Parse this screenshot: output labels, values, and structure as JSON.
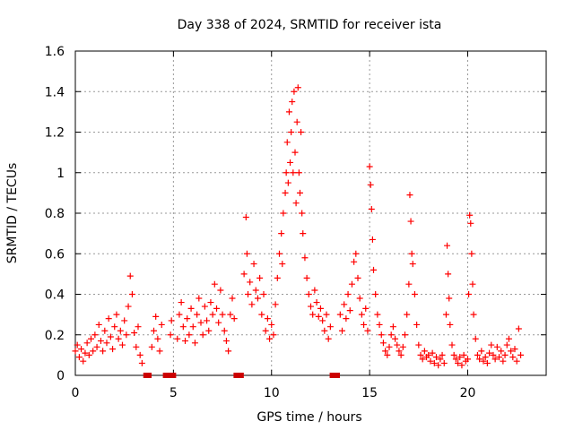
{
  "chart_data": {
    "type": "scatter",
    "title": "Day 338 of 2024, SRMTID for receiver ista",
    "xlabel": "GPS time / hours",
    "ylabel": "SRMTID / TECUs",
    "xlim": [
      0,
      24
    ],
    "ylim": [
      0,
      1.6
    ],
    "xticks": [
      0,
      5,
      10,
      15,
      20
    ],
    "yticks": [
      0,
      0.2,
      0.4,
      0.6,
      0.8,
      1,
      1.2,
      1.4,
      1.6
    ],
    "xtick_labels": [
      "0",
      "5",
      "10",
      "15",
      "20"
    ],
    "ytick_labels": [
      "0",
      "0.2",
      "0.4",
      "0.6",
      "0.8",
      "1",
      "1.2",
      "1.4",
      "1.6"
    ],
    "grid": true,
    "marker": "+",
    "series_color": "#ff0000",
    "gap_marker_color": "#cc0000",
    "data_gaps_x": [
      3.6,
      3.75,
      4.6,
      4.75,
      5.0,
      8.2,
      8.45,
      13.1,
      13.35
    ],
    "series": [
      {
        "name": "SRMTID",
        "points": [
          [
            0.0,
            0.12
          ],
          [
            0.1,
            0.15
          ],
          [
            0.2,
            0.09
          ],
          [
            0.3,
            0.13
          ],
          [
            0.4,
            0.07
          ],
          [
            0.5,
            0.11
          ],
          [
            0.6,
            0.16
          ],
          [
            0.7,
            0.1
          ],
          [
            0.8,
            0.18
          ],
          [
            0.9,
            0.12
          ],
          [
            1.0,
            0.2
          ],
          [
            1.1,
            0.14
          ],
          [
            1.2,
            0.25
          ],
          [
            1.3,
            0.17
          ],
          [
            1.4,
            0.12
          ],
          [
            1.5,
            0.22
          ],
          [
            1.6,
            0.16
          ],
          [
            1.7,
            0.28
          ],
          [
            1.8,
            0.19
          ],
          [
            1.9,
            0.13
          ],
          [
            2.0,
            0.24
          ],
          [
            2.1,
            0.3
          ],
          [
            2.2,
            0.18
          ],
          [
            2.3,
            0.22
          ],
          [
            2.4,
            0.15
          ],
          [
            2.5,
            0.27
          ],
          [
            2.6,
            0.2
          ],
          [
            2.7,
            0.34
          ],
          [
            2.8,
            0.49
          ],
          [
            2.9,
            0.4
          ],
          [
            3.0,
            0.21
          ],
          [
            3.1,
            0.14
          ],
          [
            3.2,
            0.24
          ],
          [
            3.3,
            0.1
          ],
          [
            3.4,
            0.06
          ],
          [
            3.9,
            0.14
          ],
          [
            4.0,
            0.22
          ],
          [
            4.1,
            0.29
          ],
          [
            4.2,
            0.18
          ],
          [
            4.3,
            0.12
          ],
          [
            4.4,
            0.25
          ],
          [
            4.85,
            0.2
          ],
          [
            4.9,
            0.27
          ],
          [
            5.2,
            0.18
          ],
          [
            5.3,
            0.3
          ],
          [
            5.4,
            0.36
          ],
          [
            5.5,
            0.24
          ],
          [
            5.6,
            0.17
          ],
          [
            5.7,
            0.28
          ],
          [
            5.8,
            0.2
          ],
          [
            5.9,
            0.33
          ],
          [
            6.0,
            0.24
          ],
          [
            6.1,
            0.16
          ],
          [
            6.2,
            0.3
          ],
          [
            6.3,
            0.38
          ],
          [
            6.4,
            0.26
          ],
          [
            6.5,
            0.2
          ],
          [
            6.6,
            0.34
          ],
          [
            6.7,
            0.27
          ],
          [
            6.8,
            0.22
          ],
          [
            6.9,
            0.36
          ],
          [
            7.0,
            0.3
          ],
          [
            7.1,
            0.45
          ],
          [
            7.2,
            0.33
          ],
          [
            7.3,
            0.26
          ],
          [
            7.4,
            0.42
          ],
          [
            7.5,
            0.3
          ],
          [
            7.6,
            0.22
          ],
          [
            7.7,
            0.17
          ],
          [
            7.8,
            0.12
          ],
          [
            7.9,
            0.3
          ],
          [
            8.0,
            0.38
          ],
          [
            8.1,
            0.28
          ],
          [
            8.6,
            0.5
          ],
          [
            8.7,
            0.78
          ],
          [
            8.75,
            0.6
          ],
          [
            8.8,
            0.4
          ],
          [
            8.9,
            0.46
          ],
          [
            9.0,
            0.35
          ],
          [
            9.1,
            0.55
          ],
          [
            9.2,
            0.42
          ],
          [
            9.3,
            0.38
          ],
          [
            9.4,
            0.48
          ],
          [
            9.5,
            0.3
          ],
          [
            9.6,
            0.4
          ],
          [
            9.7,
            0.22
          ],
          [
            9.8,
            0.28
          ],
          [
            9.9,
            0.18
          ],
          [
            10.0,
            0.25
          ],
          [
            10.1,
            0.2
          ],
          [
            10.2,
            0.35
          ],
          [
            10.3,
            0.48
          ],
          [
            10.4,
            0.6
          ],
          [
            10.5,
            0.7
          ],
          [
            10.55,
            0.55
          ],
          [
            10.6,
            0.8
          ],
          [
            10.7,
            0.9
          ],
          [
            10.75,
            1.0
          ],
          [
            10.8,
            1.15
          ],
          [
            10.85,
            0.95
          ],
          [
            10.9,
            1.3
          ],
          [
            10.95,
            1.05
          ],
          [
            11.0,
            1.2
          ],
          [
            11.05,
            1.35
          ],
          [
            11.1,
            1.0
          ],
          [
            11.15,
            1.4
          ],
          [
            11.2,
            1.1
          ],
          [
            11.25,
            0.85
          ],
          [
            11.3,
            1.25
          ],
          [
            11.35,
            1.42
          ],
          [
            11.4,
            1.0
          ],
          [
            11.45,
            0.9
          ],
          [
            11.5,
            1.2
          ],
          [
            11.55,
            0.8
          ],
          [
            11.6,
            0.7
          ],
          [
            11.7,
            0.58
          ],
          [
            11.8,
            0.48
          ],
          [
            11.9,
            0.4
          ],
          [
            12.0,
            0.34
          ],
          [
            12.1,
            0.3
          ],
          [
            12.2,
            0.42
          ],
          [
            12.3,
            0.36
          ],
          [
            12.4,
            0.29
          ],
          [
            12.5,
            0.33
          ],
          [
            12.6,
            0.27
          ],
          [
            12.7,
            0.22
          ],
          [
            12.8,
            0.3
          ],
          [
            12.9,
            0.18
          ],
          [
            13.0,
            0.24
          ],
          [
            13.5,
            0.3
          ],
          [
            13.6,
            0.22
          ],
          [
            13.7,
            0.35
          ],
          [
            13.8,
            0.28
          ],
          [
            13.9,
            0.4
          ],
          [
            14.0,
            0.32
          ],
          [
            14.1,
            0.45
          ],
          [
            14.2,
            0.56
          ],
          [
            14.3,
            0.6
          ],
          [
            14.4,
            0.48
          ],
          [
            14.5,
            0.38
          ],
          [
            14.6,
            0.3
          ],
          [
            14.7,
            0.25
          ],
          [
            14.8,
            0.33
          ],
          [
            14.9,
            0.22
          ],
          [
            15.0,
            1.03
          ],
          [
            15.05,
            0.94
          ],
          [
            15.1,
            0.82
          ],
          [
            15.15,
            0.67
          ],
          [
            15.2,
            0.52
          ],
          [
            15.3,
            0.4
          ],
          [
            15.4,
            0.3
          ],
          [
            15.5,
            0.25
          ],
          [
            15.6,
            0.2
          ],
          [
            15.7,
            0.16
          ],
          [
            15.8,
            0.12
          ],
          [
            15.9,
            0.1
          ],
          [
            16.0,
            0.14
          ],
          [
            16.1,
            0.2
          ],
          [
            16.2,
            0.24
          ],
          [
            16.3,
            0.18
          ],
          [
            16.4,
            0.15
          ],
          [
            16.5,
            0.12
          ],
          [
            16.6,
            0.1
          ],
          [
            16.7,
            0.14
          ],
          [
            16.8,
            0.2
          ],
          [
            16.9,
            0.3
          ],
          [
            17.0,
            0.45
          ],
          [
            17.05,
            0.89
          ],
          [
            17.1,
            0.76
          ],
          [
            17.15,
            0.6
          ],
          [
            17.2,
            0.55
          ],
          [
            17.3,
            0.4
          ],
          [
            17.4,
            0.25
          ],
          [
            17.5,
            0.15
          ],
          [
            17.6,
            0.1
          ],
          [
            17.7,
            0.08
          ],
          [
            17.8,
            0.12
          ],
          [
            17.9,
            0.09
          ],
          [
            18.0,
            0.1
          ],
          [
            18.1,
            0.07
          ],
          [
            18.2,
            0.11
          ],
          [
            18.3,
            0.06
          ],
          [
            18.4,
            0.09
          ],
          [
            18.5,
            0.05
          ],
          [
            18.6,
            0.08
          ],
          [
            18.7,
            0.1
          ],
          [
            18.8,
            0.06
          ],
          [
            18.9,
            0.3
          ],
          [
            18.95,
            0.64
          ],
          [
            19.0,
            0.5
          ],
          [
            19.05,
            0.38
          ],
          [
            19.1,
            0.25
          ],
          [
            19.2,
            0.15
          ],
          [
            19.3,
            0.1
          ],
          [
            19.4,
            0.08
          ],
          [
            19.5,
            0.06
          ],
          [
            19.6,
            0.09
          ],
          [
            19.7,
            0.05
          ],
          [
            19.8,
            0.1
          ],
          [
            19.9,
            0.07
          ],
          [
            20.0,
            0.08
          ],
          [
            20.05,
            0.4
          ],
          [
            20.1,
            0.79
          ],
          [
            20.15,
            0.75
          ],
          [
            20.2,
            0.6
          ],
          [
            20.25,
            0.45
          ],
          [
            20.3,
            0.3
          ],
          [
            20.4,
            0.18
          ],
          [
            20.5,
            0.1
          ],
          [
            20.6,
            0.08
          ],
          [
            20.7,
            0.12
          ],
          [
            20.8,
            0.07
          ],
          [
            20.9,
            0.09
          ],
          [
            21.0,
            0.06
          ],
          [
            21.1,
            0.11
          ],
          [
            21.2,
            0.15
          ],
          [
            21.3,
            0.1
          ],
          [
            21.4,
            0.08
          ],
          [
            21.5,
            0.14
          ],
          [
            21.6,
            0.09
          ],
          [
            21.7,
            0.12
          ],
          [
            21.8,
            0.07
          ],
          [
            21.9,
            0.1
          ],
          [
            22.0,
            0.15
          ],
          [
            22.1,
            0.18
          ],
          [
            22.2,
            0.12
          ],
          [
            22.3,
            0.09
          ],
          [
            22.4,
            0.13
          ],
          [
            22.5,
            0.07
          ],
          [
            22.6,
            0.23
          ],
          [
            22.7,
            0.1
          ]
        ]
      }
    ]
  }
}
